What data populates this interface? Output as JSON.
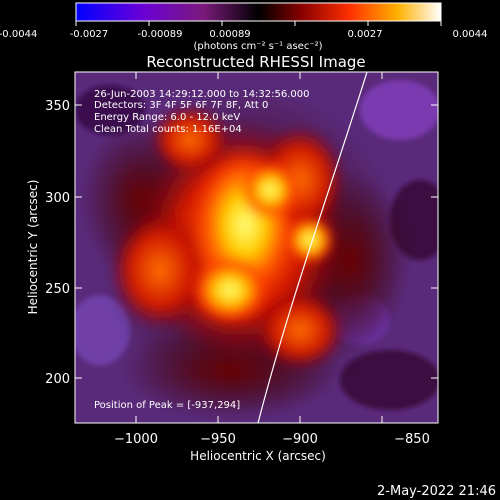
{
  "colorbar": {
    "ticks": [
      "-0.0044",
      "-0.0027",
      "-0.00089",
      "0.00089",
      "0.0027",
      "0.0044"
    ],
    "units": "(photons cm⁻² s⁻¹ asec⁻²)"
  },
  "plot": {
    "title": "Reconstructed RHESSI Image",
    "xlabel": "Heliocentric X (arcsec)",
    "ylabel": "Heliocentric Y (arcsec)",
    "x_ticks": [
      "−1000",
      "−950",
      "−900",
      "−850"
    ],
    "y_ticks": [
      "200",
      "250",
      "300",
      "350"
    ],
    "info_lines": [
      "26-Jun-2003 14:29:12.000 to 14:32:56.000",
      "Detectors: 3F 4F 5F 6F 7F 8F, Att 0",
      "Energy Range: 6.0 - 12.0 keV",
      "Clean     Total counts: 1.16E+04"
    ],
    "peak_label": "Position of Peak = [-937,294]"
  },
  "timestamp": "2-May-2022 21:46",
  "colors": {
    "background": "#000000",
    "text": "#ffffff"
  }
}
